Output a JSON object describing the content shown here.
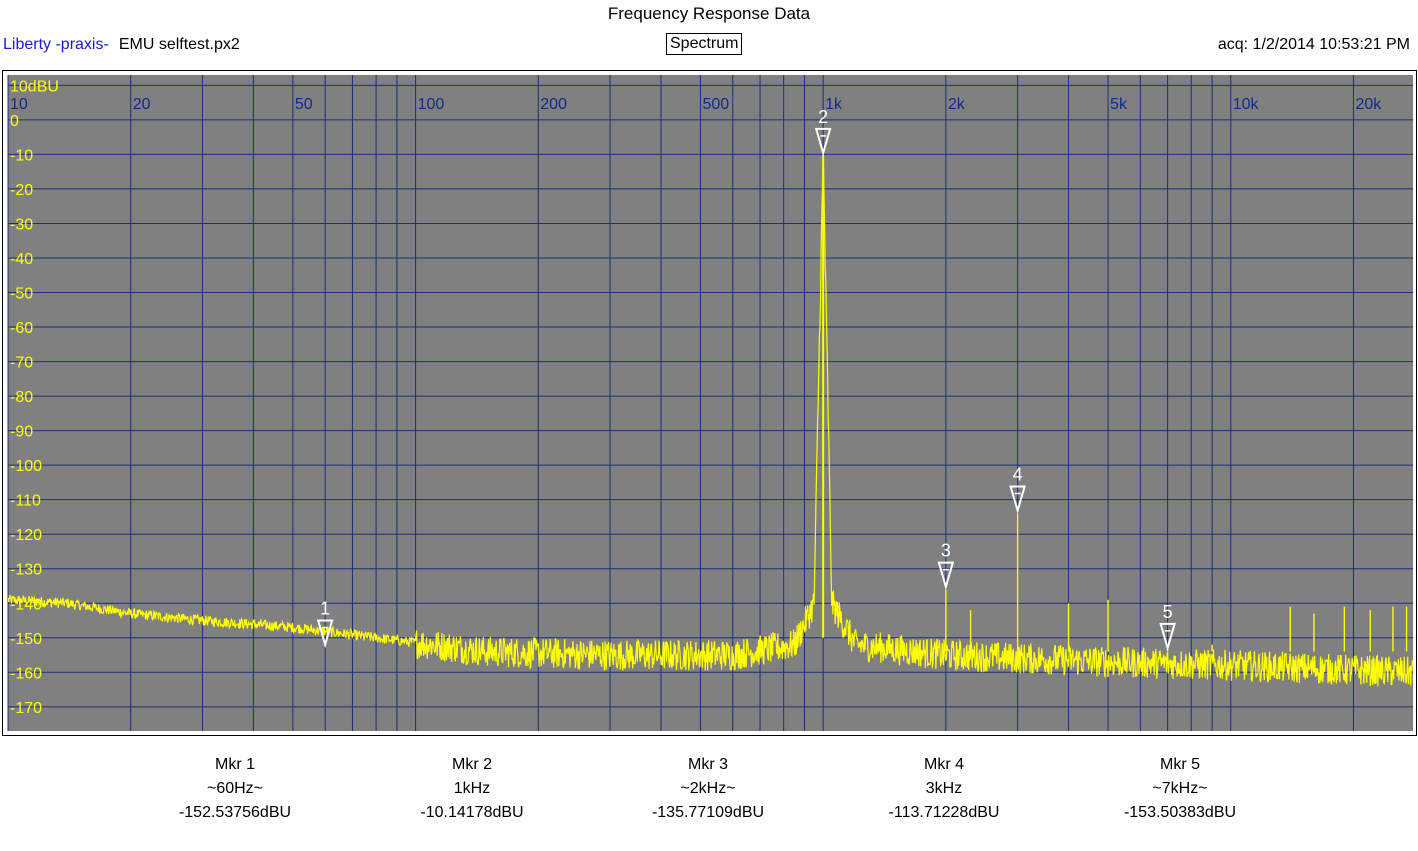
{
  "header": {
    "title": "Frequency Response Data",
    "brand": "Liberty -praxis-",
    "file": "EMU selftest.px2",
    "mode": "Spectrum",
    "acq": "acq: 1/2/2014 10:53:21 PM"
  },
  "colors": {
    "plot_bg": "#808080",
    "grid": "#1a2f7a",
    "trace": "#ffff00",
    "ylabel": "#ffff00",
    "xlabel": "#102a8c",
    "marker": "#ffffff"
  },
  "chart_data": {
    "type": "line",
    "title": "Frequency Response Data",
    "x_scale": "log",
    "xlim": [
      10,
      28000
    ],
    "ylim": [
      -177,
      13
    ],
    "x_ticks": [
      {
        "v": 10,
        "label": "10"
      },
      {
        "v": 20,
        "label": "20"
      },
      {
        "v": 50,
        "label": "50"
      },
      {
        "v": 100,
        "label": "100"
      },
      {
        "v": 200,
        "label": "200"
      },
      {
        "v": 500,
        "label": "500"
      },
      {
        "v": 1000,
        "label": "1k"
      },
      {
        "v": 2000,
        "label": "2k"
      },
      {
        "v": 5000,
        "label": "5k"
      },
      {
        "v": 10000,
        "label": "10k"
      },
      {
        "v": 20000,
        "label": "20k"
      }
    ],
    "y_ticks": [
      {
        "v": 10,
        "label": "10dBU"
      },
      {
        "v": 0,
        "label": "0"
      },
      {
        "v": -10,
        "label": "-10"
      },
      {
        "v": -20,
        "label": "-20"
      },
      {
        "v": -30,
        "label": "-30"
      },
      {
        "v": -40,
        "label": "-40"
      },
      {
        "v": -50,
        "label": "-50"
      },
      {
        "v": -60,
        "label": "-60"
      },
      {
        "v": -70,
        "label": "-70"
      },
      {
        "v": -80,
        "label": "-80"
      },
      {
        "v": -90,
        "label": "-90"
      },
      {
        "v": -100,
        "label": "-100"
      },
      {
        "v": -110,
        "label": "-110"
      },
      {
        "v": -120,
        "label": "-120"
      },
      {
        "v": -130,
        "label": "-130"
      },
      {
        "v": -140,
        "label": "-140"
      },
      {
        "v": -150,
        "label": "-150"
      },
      {
        "v": -160,
        "label": "-160"
      },
      {
        "v": -170,
        "label": "-170"
      }
    ],
    "noise_floor": [
      [
        10,
        -139
      ],
      [
        14,
        -140
      ],
      [
        20,
        -143
      ],
      [
        30,
        -145
      ],
      [
        50,
        -147
      ],
      [
        80,
        -150
      ],
      [
        150,
        -154
      ],
      [
        300,
        -155
      ],
      [
        600,
        -155
      ],
      [
        850,
        -152
      ],
      [
        950,
        -140
      ],
      [
        1000,
        -10
      ],
      [
        1050,
        -140
      ],
      [
        1200,
        -152
      ],
      [
        2000,
        -155
      ],
      [
        5000,
        -157
      ],
      [
        10000,
        -158
      ],
      [
        28000,
        -160
      ]
    ],
    "spurs": [
      [
        2000,
        -136
      ],
      [
        2300,
        -142
      ],
      [
        3000,
        -114
      ],
      [
        4000,
        -140
      ],
      [
        5000,
        -139
      ],
      [
        7000,
        -153
      ],
      [
        9000,
        -152
      ],
      [
        14000,
        -141
      ],
      [
        16000,
        -143
      ],
      [
        19000,
        -141
      ],
      [
        22000,
        -142
      ],
      [
        25000,
        -141
      ],
      [
        27000,
        -141
      ]
    ],
    "markers": [
      {
        "id": "1",
        "freq": 60,
        "level": -152.53756
      },
      {
        "id": "2",
        "freq": 1000,
        "level": -10.14178
      },
      {
        "id": "3",
        "freq": 2000,
        "level": -135.77109
      },
      {
        "id": "4",
        "freq": 3000,
        "level": -113.71228
      },
      {
        "id": "5",
        "freq": 7000,
        "level": -153.50383
      }
    ]
  },
  "marker_readouts": [
    {
      "name": "Mkr 1",
      "freq": "~60Hz~",
      "value": "-152.53756dBU"
    },
    {
      "name": "Mkr 2",
      "freq": "1kHz",
      "value": "-10.14178dBU"
    },
    {
      "name": "Mkr 3",
      "freq": "~2kHz~",
      "value": "-135.77109dBU"
    },
    {
      "name": "Mkr 4",
      "freq": "3kHz",
      "value": "-113.71228dBU"
    },
    {
      "name": "Mkr 5",
      "freq": "~7kHz~",
      "value": "-153.50383dBU"
    }
  ]
}
